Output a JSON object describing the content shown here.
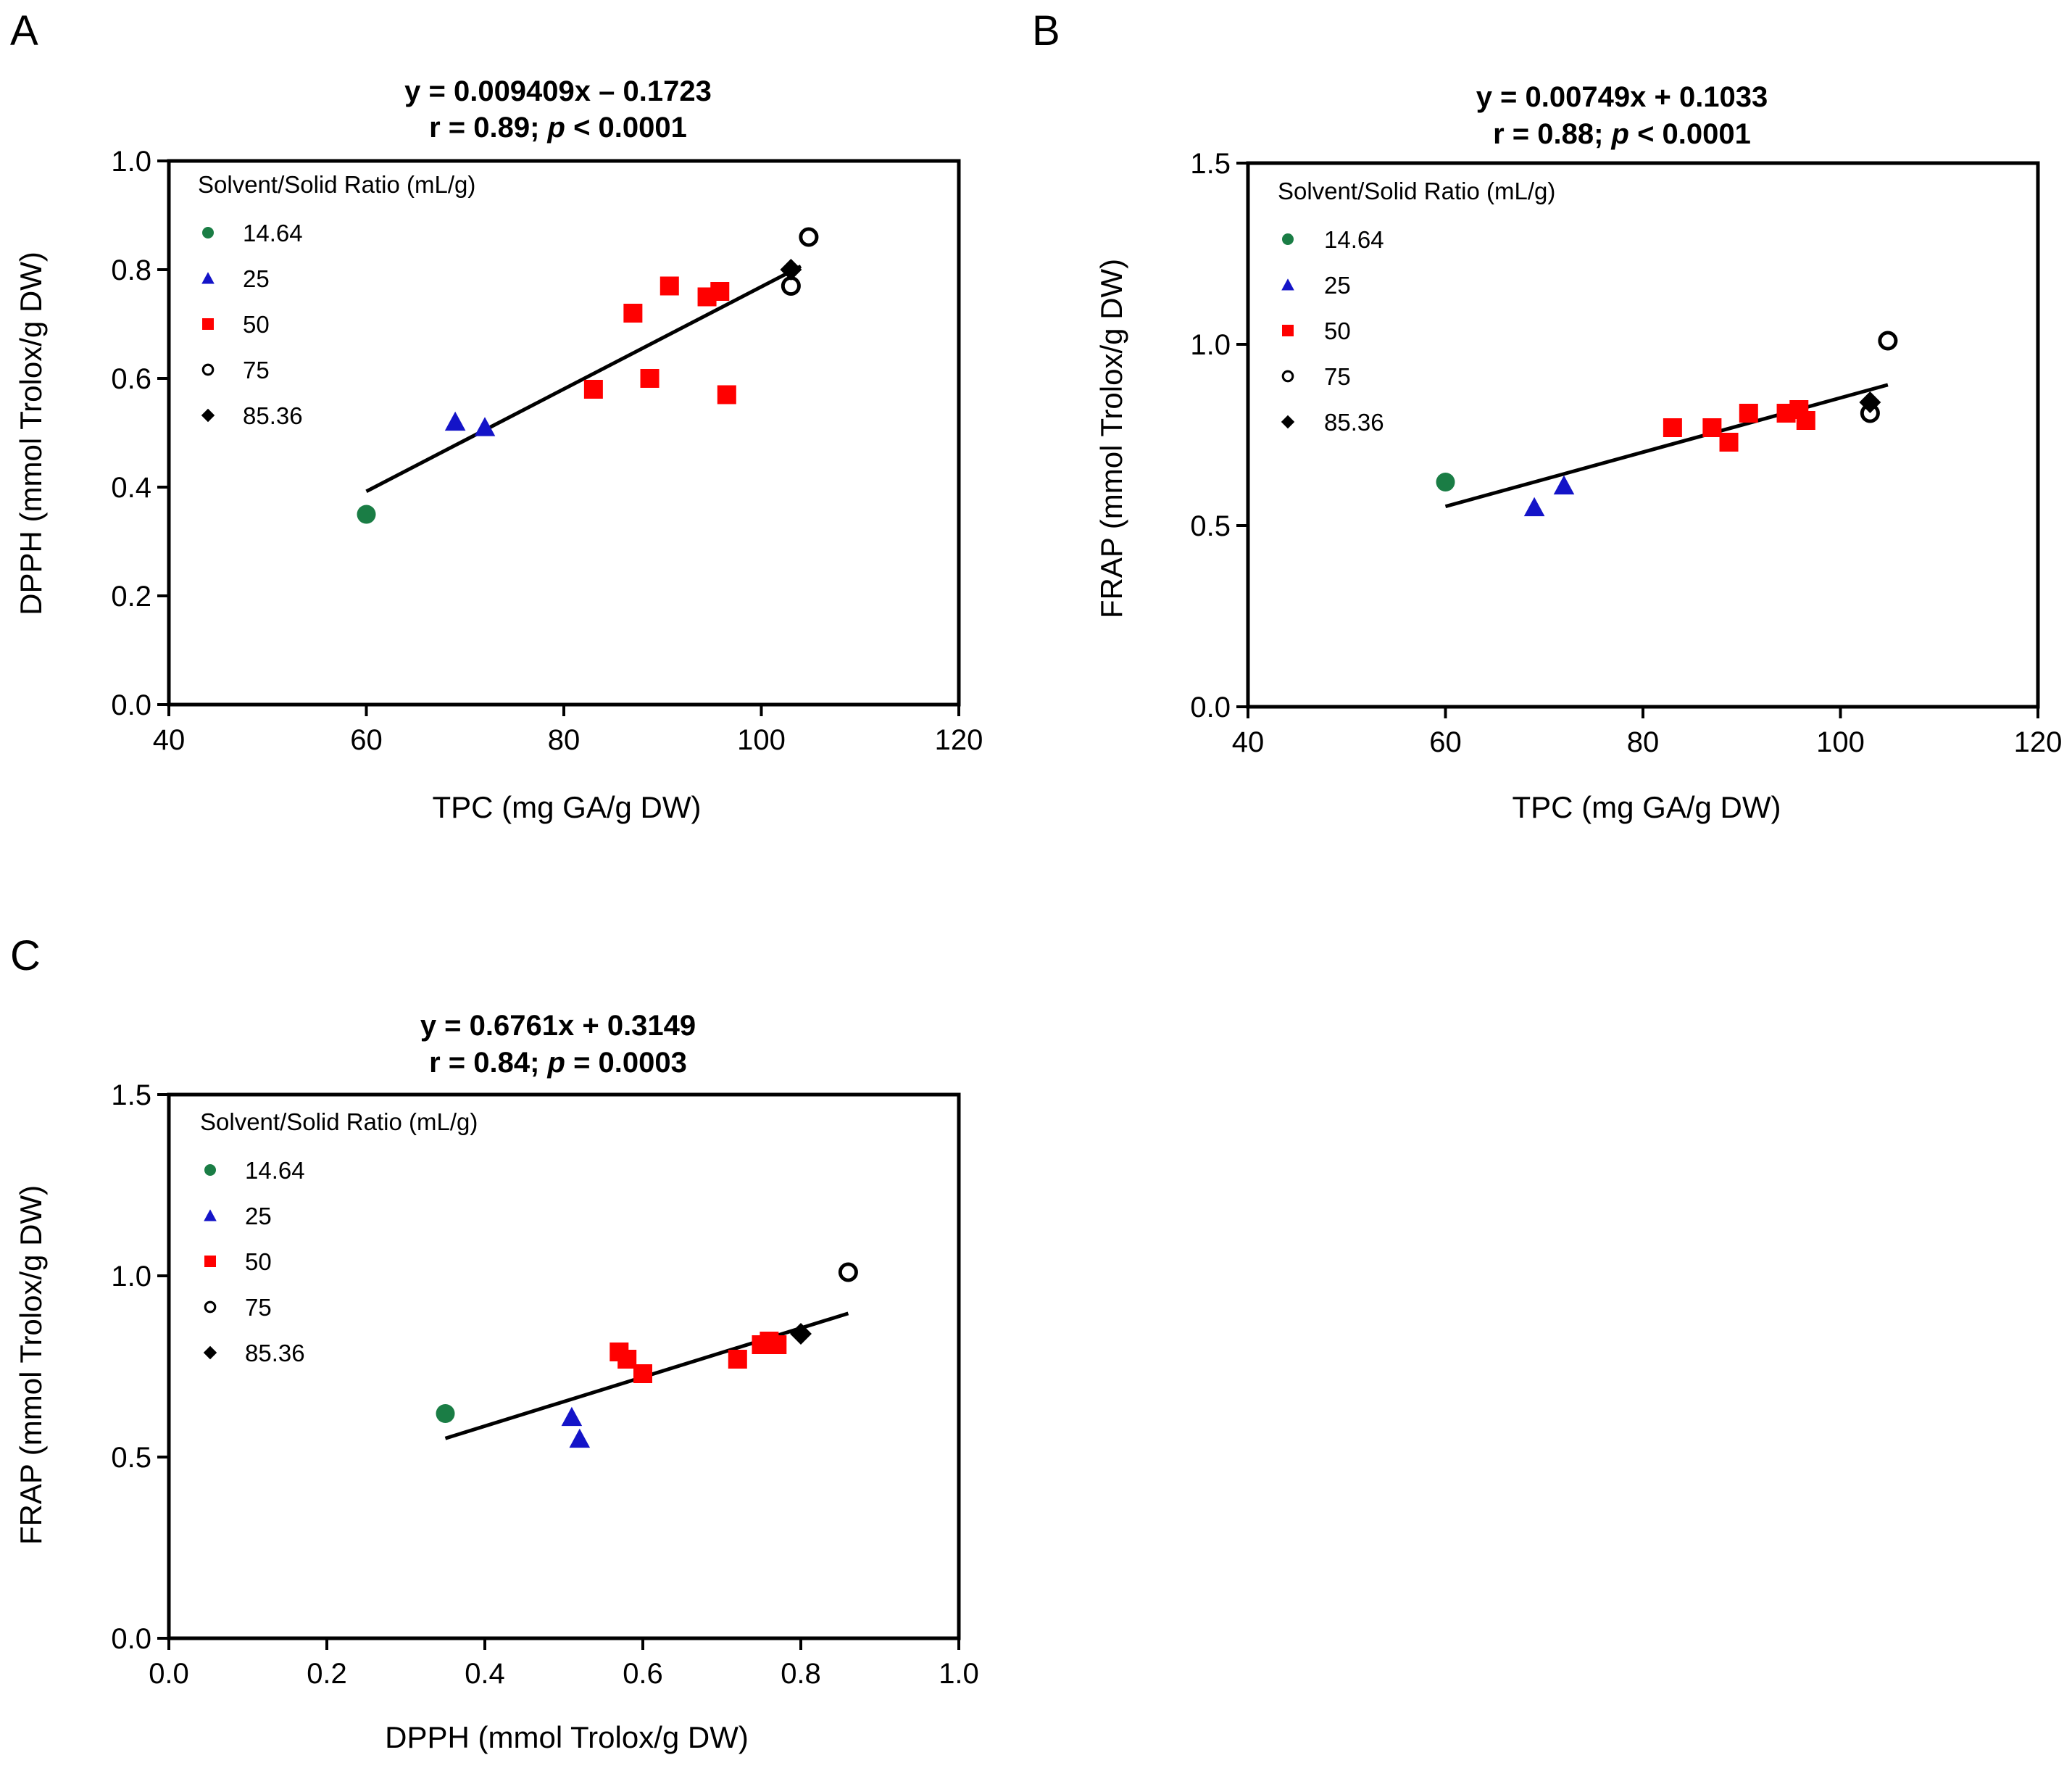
{
  "figure": {
    "series_styles": [
      {
        "marker": "circle-filled",
        "color": "#1a7d45"
      },
      {
        "marker": "triangle",
        "color": "#1414c8"
      },
      {
        "marker": "square",
        "color": "#ff0000"
      },
      {
        "marker": "circle-open",
        "color": "#000000"
      },
      {
        "marker": "diamond",
        "color": "#000000"
      }
    ]
  },
  "chart_data": [
    {
      "panel": "A",
      "type": "scatter",
      "title_line1": "y = 0.009409x – 0.1723",
      "title_line2_pre": "r = 0.89; ",
      "title_line2_p": "p",
      "title_line2_post": " < 0.0001",
      "xlabel": "TPC (mg GA/g DW)",
      "ylabel": "DPPH (mmol Trolox/g DW)",
      "xlim": [
        40,
        120
      ],
      "ylim": [
        0.0,
        1.0
      ],
      "xticks": [
        "40",
        "60",
        "80",
        "100",
        "120"
      ],
      "yticks": [
        "0.0",
        "0.2",
        "0.4",
        "0.6",
        "0.8",
        "1.0"
      ],
      "legend_title": "Solvent/Solid Ratio (mL/g)",
      "fit": {
        "slope": 0.009409,
        "intercept": -0.1723,
        "x_range": [
          60,
          104
        ]
      },
      "series": [
        {
          "name": "14.64",
          "points": [
            [
              60,
              0.35
            ]
          ]
        },
        {
          "name": "25",
          "points": [
            [
              69,
              0.52
            ],
            [
              72,
              0.51
            ]
          ]
        },
        {
          "name": "50",
          "points": [
            [
              83,
              0.58
            ],
            [
              87,
              0.72
            ],
            [
              88.7,
              0.6
            ],
            [
              90.7,
              0.77
            ],
            [
              94.5,
              0.75
            ],
            [
              95.8,
              0.76
            ],
            [
              96.5,
              0.57
            ]
          ]
        },
        {
          "name": "75",
          "points": [
            [
              103,
              0.77
            ],
            [
              104.8,
              0.86
            ]
          ]
        },
        {
          "name": "85.36",
          "points": [
            [
              103,
              0.8
            ]
          ]
        }
      ]
    },
    {
      "panel": "B",
      "type": "scatter",
      "title_line1": "y = 0.00749x + 0.1033",
      "title_line2_pre": "r = 0.88; ",
      "title_line2_p": "p",
      "title_line2_post": " < 0.0001",
      "xlabel": "TPC (mg GA/g DW)",
      "ylabel": "FRAP (mmol Trolox/g DW)",
      "xlim": [
        40,
        120
      ],
      "ylim": [
        0.0,
        1.5
      ],
      "xticks": [
        "40",
        "60",
        "80",
        "100",
        "120"
      ],
      "yticks": [
        "0.0",
        "0.5",
        "1.0",
        "1.5"
      ],
      "legend_title": "Solvent/Solid Ratio (mL/g)",
      "fit": {
        "slope": 0.00749,
        "intercept": 0.1033,
        "x_range": [
          60,
          104.8
        ]
      },
      "series": [
        {
          "name": "14.64",
          "points": [
            [
              60,
              0.62
            ]
          ]
        },
        {
          "name": "25",
          "points": [
            [
              69,
              0.55
            ],
            [
              72,
              0.61
            ]
          ]
        },
        {
          "name": "50",
          "points": [
            [
              83,
              0.77
            ],
            [
              87,
              0.77
            ],
            [
              88.7,
              0.73
            ],
            [
              90.7,
              0.81
            ],
            [
              94.5,
              0.81
            ],
            [
              95.8,
              0.82
            ],
            [
              96.5,
              0.79
            ]
          ]
        },
        {
          "name": "75",
          "points": [
            [
              103,
              0.81
            ],
            [
              104.8,
              1.01
            ]
          ]
        },
        {
          "name": "85.36",
          "points": [
            [
              103,
              0.84
            ]
          ]
        }
      ]
    },
    {
      "panel": "C",
      "type": "scatter",
      "title_line1": "y = 0.6761x + 0.3149",
      "title_line2_pre": "r = 0.84; ",
      "title_line2_p": "p",
      "title_line2_post": " = 0.0003",
      "xlabel": "DPPH (mmol Trolox/g DW)",
      "ylabel": "FRAP (mmol Trolox/g DW)",
      "xlim": [
        0.0,
        1.0
      ],
      "ylim": [
        0.0,
        1.5
      ],
      "xticks": [
        "0.0",
        "0.2",
        "0.4",
        "0.6",
        "0.8",
        "1.0"
      ],
      "yticks": [
        "0.0",
        "0.5",
        "1.0",
        "1.5"
      ],
      "legend_title": "Solvent/Solid Ratio (mL/g)",
      "fit": {
        "slope": 0.6761,
        "intercept": 0.3149,
        "x_range": [
          0.35,
          0.86
        ]
      },
      "series": [
        {
          "name": "14.64",
          "points": [
            [
              0.35,
              0.62
            ]
          ]
        },
        {
          "name": "25",
          "points": [
            [
              0.51,
              0.61
            ],
            [
              0.52,
              0.55
            ]
          ]
        },
        {
          "name": "50",
          "points": [
            [
              0.57,
              0.79
            ],
            [
              0.58,
              0.77
            ],
            [
              0.6,
              0.73
            ],
            [
              0.72,
              0.77
            ],
            [
              0.75,
              0.81
            ],
            [
              0.76,
              0.82
            ],
            [
              0.77,
              0.81
            ]
          ]
        },
        {
          "name": "75",
          "points": [
            [
              0.86,
              1.01
            ]
          ]
        },
        {
          "name": "85.36",
          "points": [
            [
              0.8,
              0.84
            ]
          ]
        }
      ]
    }
  ]
}
